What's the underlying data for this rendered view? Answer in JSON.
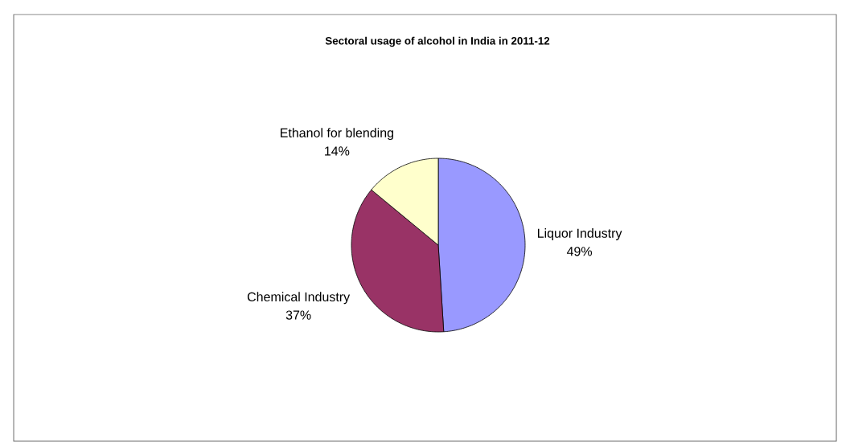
{
  "chart_data": {
    "type": "pie",
    "title": "Sectoral usage of alcohol in India in 2011-12",
    "categories": [
      "Liquor Industry",
      "Chemical Industry",
      "Ethanol for blending"
    ],
    "values": [
      49,
      37,
      14
    ],
    "value_labels": [
      "49%",
      "37%",
      "14%"
    ],
    "colors": [
      "#9999ff",
      "#993366",
      "#ffffcc"
    ]
  }
}
